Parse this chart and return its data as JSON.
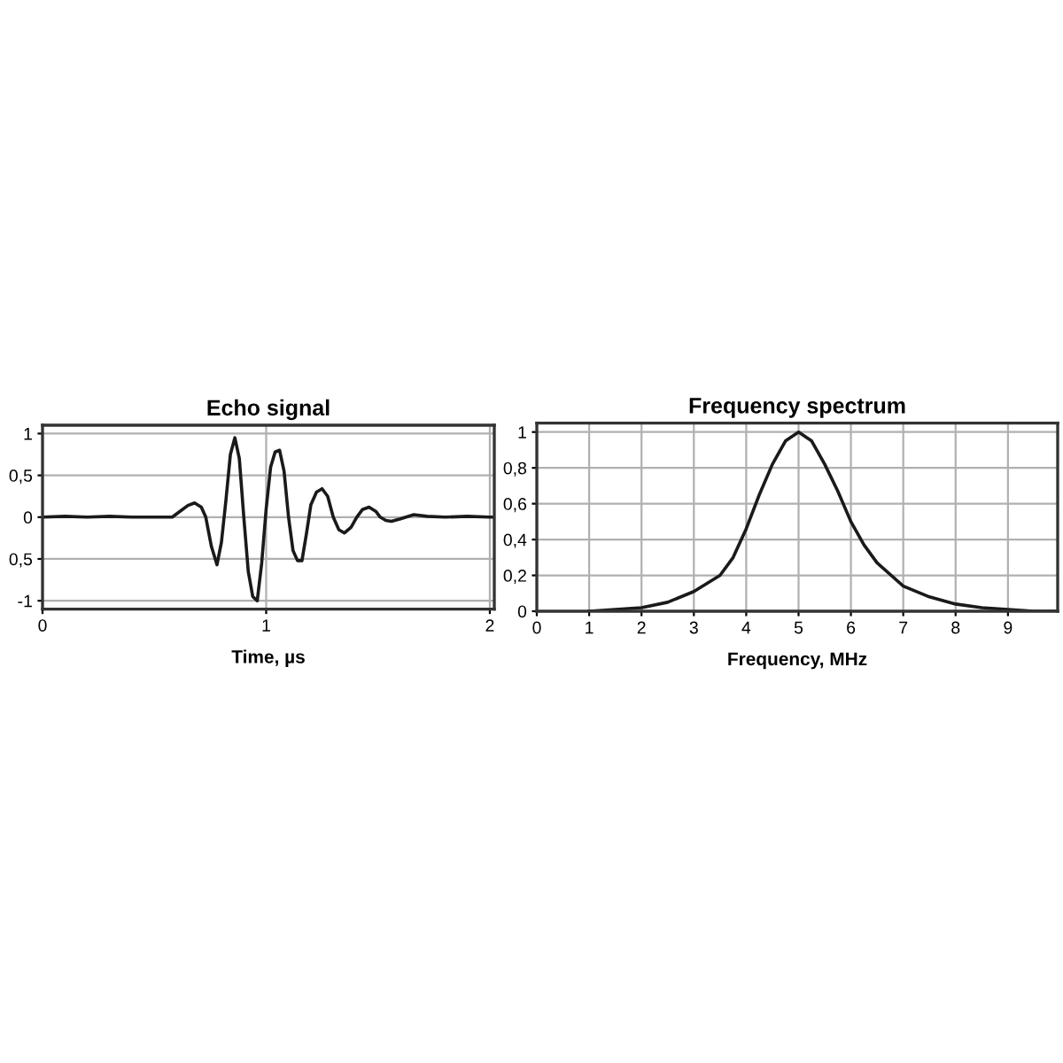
{
  "chart_data": [
    {
      "type": "line",
      "title": "Echo signal",
      "xlabel": "Time, µs",
      "xlim": [
        0,
        2.02
      ],
      "ylim": [
        -1.1,
        1.1
      ],
      "xticks": [
        0,
        1,
        2
      ],
      "yticks": [
        {
          "value": -1,
          "label": "-1"
        },
        {
          "value": -0.5,
          "label": "0,5"
        },
        {
          "value": 0,
          "label": "0"
        },
        {
          "value": 0.5,
          "label": "0,5"
        },
        {
          "value": 1,
          "label": "1"
        }
      ],
      "grid": true,
      "marker": "none",
      "line_style": "solid",
      "series": [
        {
          "color": "#1a1a1a",
          "x": [
            0,
            0.1,
            0.2,
            0.3,
            0.4,
            0.5,
            0.58,
            0.62,
            0.65,
            0.68,
            0.71,
            0.73,
            0.755,
            0.78,
            0.8,
            0.82,
            0.84,
            0.86,
            0.88,
            0.9,
            0.92,
            0.94,
            0.96,
            0.98,
            1.0,
            1.02,
            1.04,
            1.06,
            1.08,
            1.1,
            1.12,
            1.14,
            1.16,
            1.18,
            1.2,
            1.225,
            1.25,
            1.275,
            1.3,
            1.325,
            1.35,
            1.38,
            1.405,
            1.43,
            1.46,
            1.49,
            1.51,
            1.535,
            1.56,
            1.6,
            1.66,
            1.72,
            1.8,
            1.9,
            2.0,
            2.02
          ],
          "values": [
            0,
            0.01,
            0,
            0.01,
            0,
            0,
            0,
            0.08,
            0.14,
            0.17,
            0.12,
            0,
            -0.35,
            -0.57,
            -0.3,
            0.2,
            0.75,
            0.95,
            0.7,
            0,
            -0.65,
            -0.95,
            -1.0,
            -0.55,
            0.1,
            0.6,
            0.78,
            0.8,
            0.55,
            0,
            -0.4,
            -0.52,
            -0.52,
            -0.2,
            0.15,
            0.3,
            0.34,
            0.25,
            0,
            -0.15,
            -0.19,
            -0.12,
            0,
            0.09,
            0.12,
            0.07,
            0,
            -0.04,
            -0.05,
            -0.02,
            0.03,
            0.01,
            0,
            0.01,
            0,
            0
          ]
        }
      ]
    },
    {
      "type": "line",
      "title": "Frequency spectrum",
      "xlabel": "Frequency, MHz",
      "xlim": [
        0,
        9.95
      ],
      "ylim": [
        0,
        1.05
      ],
      "xticks": [
        0,
        1,
        2,
        3,
        4,
        5,
        6,
        7,
        8,
        9
      ],
      "yticks": [
        {
          "value": 0,
          "label": "0"
        },
        {
          "value": 0.2,
          "label": "0,2"
        },
        {
          "value": 0.4,
          "label": "0,4"
        },
        {
          "value": 0.6,
          "label": "0,6"
        },
        {
          "value": 0.8,
          "label": "0,8"
        },
        {
          "value": 1,
          "label": "1"
        }
      ],
      "grid": true,
      "marker": "none",
      "line_style": "solid",
      "series": [
        {
          "color": "#1a1a1a",
          "x": [
            1,
            1.5,
            2,
            2.5,
            3,
            3.5,
            3.75,
            4,
            4.25,
            4.5,
            4.75,
            5,
            5.25,
            5.5,
            5.75,
            6,
            6.25,
            6.5,
            7,
            7.5,
            8,
            8.5,
            9,
            9.5,
            9.95
          ],
          "values": [
            0,
            0.01,
            0.02,
            0.05,
            0.11,
            0.2,
            0.3,
            0.46,
            0.65,
            0.82,
            0.95,
            1.0,
            0.95,
            0.82,
            0.67,
            0.5,
            0.37,
            0.27,
            0.14,
            0.08,
            0.04,
            0.02,
            0.01,
            0,
            0
          ]
        }
      ]
    }
  ]
}
